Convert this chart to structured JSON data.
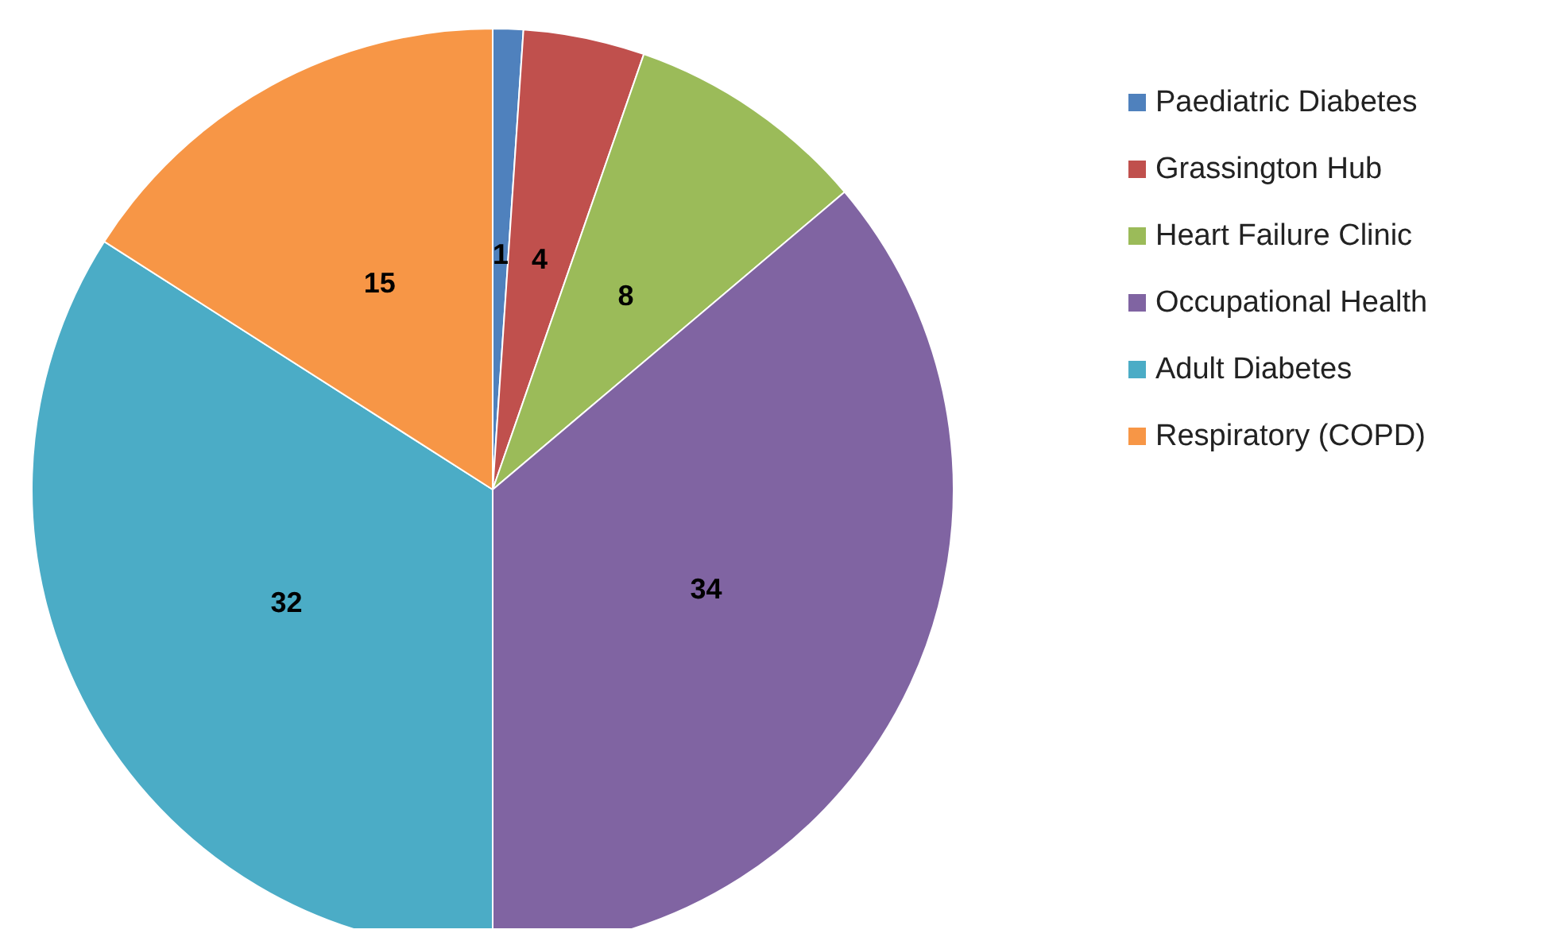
{
  "chart_data": {
    "type": "pie",
    "categories": [
      "Paediatric Diabetes",
      "Grassington Hub",
      "Heart Failure Clinic",
      "Occupational Health",
      "Adult Diabetes",
      "Respiratory (COPD)"
    ],
    "values": [
      1,
      4,
      8,
      34,
      32,
      15
    ],
    "colors": [
      "#4f81bd",
      "#c0504d",
      "#9bbb59",
      "#8064a2",
      "#4bacc6",
      "#f79646"
    ],
    "data_labels": true,
    "legend": "top right"
  }
}
